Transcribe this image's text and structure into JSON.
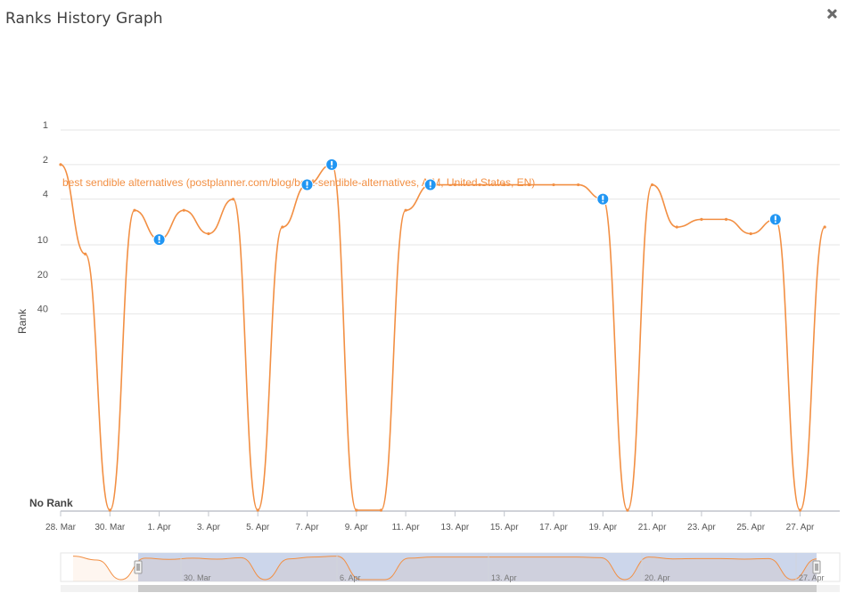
{
  "header": {
    "title": "Ranks History Graph",
    "close_icon": "close-icon"
  },
  "colors": {
    "series": "#f28f43",
    "marker": "#2196f3",
    "grid": "#e6e6e6",
    "navigator_mask": "#ccd6eb"
  },
  "chart_data": {
    "type": "line",
    "title": "",
    "ylabel": "Rank",
    "yaxis": {
      "scale": "log",
      "reversed": true,
      "ticks": [
        "1",
        "2",
        "4",
        "10",
        "20",
        "40"
      ],
      "bottom_label": "No Rank"
    },
    "xaxis": {
      "ticks": [
        "28. Mar",
        "30. Mar",
        "1. Apr",
        "3. Apr",
        "5. Apr",
        "7. Apr",
        "9. Apr",
        "11. Apr",
        "13. Apr",
        "15. Apr",
        "17. Apr",
        "19. Apr",
        "21. Apr",
        "23. Apr",
        "25. Apr",
        "27. Apr"
      ]
    },
    "series": [
      {
        "name": "best sendible alternatives (postplanner.com/blog/best-sendible-alternatives, AIM, United States, EN)",
        "x": [
          "28. Mar",
          "29. Mar",
          "30. Mar",
          "31. Mar",
          "1. Apr",
          "2. Apr",
          "3. Apr",
          "4. Apr",
          "5. Apr",
          "6. Apr",
          "7. Apr",
          "8. Apr",
          "9. Apr",
          "10. Apr",
          "11. Apr",
          "12. Apr",
          "13. Apr",
          "14. Apr",
          "15. Apr",
          "16. Apr",
          "17. Apr",
          "18. Apr",
          "19. Apr",
          "20. Apr",
          "21. Apr",
          "22. Apr",
          "23. Apr",
          "24. Apr",
          "25. Apr",
          "26. Apr",
          "27. Apr",
          "28. Apr"
        ],
        "values": [
          2,
          12,
          null,
          5,
          9,
          5,
          8,
          4,
          null,
          7,
          3,
          2,
          null,
          null,
          5,
          3,
          3,
          3,
          3,
          3,
          3,
          3,
          4,
          null,
          3,
          7,
          6,
          6,
          8,
          6,
          null,
          7
        ]
      }
    ],
    "events_at": [
      "1. Apr",
      "7. Apr",
      "8. Apr",
      "12. Apr",
      "19. Apr",
      "26. Apr"
    ],
    "events_icon": "exclamation-icon",
    "navigator": {
      "labels": [
        "30. Mar",
        "6. Apr",
        "13. Apr",
        "20. Apr",
        "27. Apr"
      ]
    }
  }
}
